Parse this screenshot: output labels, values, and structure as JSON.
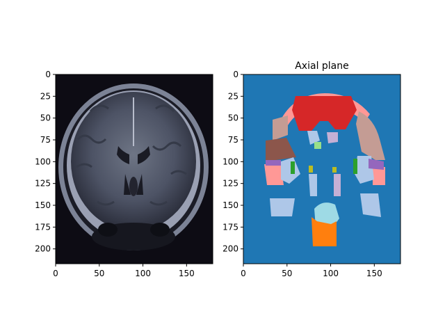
{
  "chart_data": [
    {
      "type": "image",
      "image_kind": "mri-grayscale",
      "title": "",
      "xlim": [
        0,
        180
      ],
      "ylim": [
        217,
        0
      ],
      "xticks": [
        0,
        50,
        100,
        150
      ],
      "yticks": [
        0,
        25,
        50,
        75,
        100,
        125,
        150,
        175,
        200
      ],
      "xtick_labels": [
        "0",
        "50",
        "100",
        "150"
      ],
      "ytick_labels": [
        "0",
        "25",
        "50",
        "75",
        "100",
        "125",
        "150",
        "175",
        "200"
      ]
    },
    {
      "type": "heatmap",
      "image_kind": "segmentation-labels",
      "title": "Axial plane",
      "colormap": "tab10",
      "background_color": "#1f77b4",
      "xlim": [
        0,
        180
      ],
      "ylim": [
        217,
        0
      ],
      "xticks": [
        0,
        50,
        100,
        150
      ],
      "yticks": [
        0,
        25,
        50,
        75,
        100,
        125,
        150,
        175,
        200
      ],
      "xtick_labels": [
        "0",
        "50",
        "100",
        "150"
      ],
      "ytick_labels": [
        "0",
        "25",
        "50",
        "75",
        "100",
        "125",
        "150",
        "175",
        "200"
      ]
    }
  ]
}
